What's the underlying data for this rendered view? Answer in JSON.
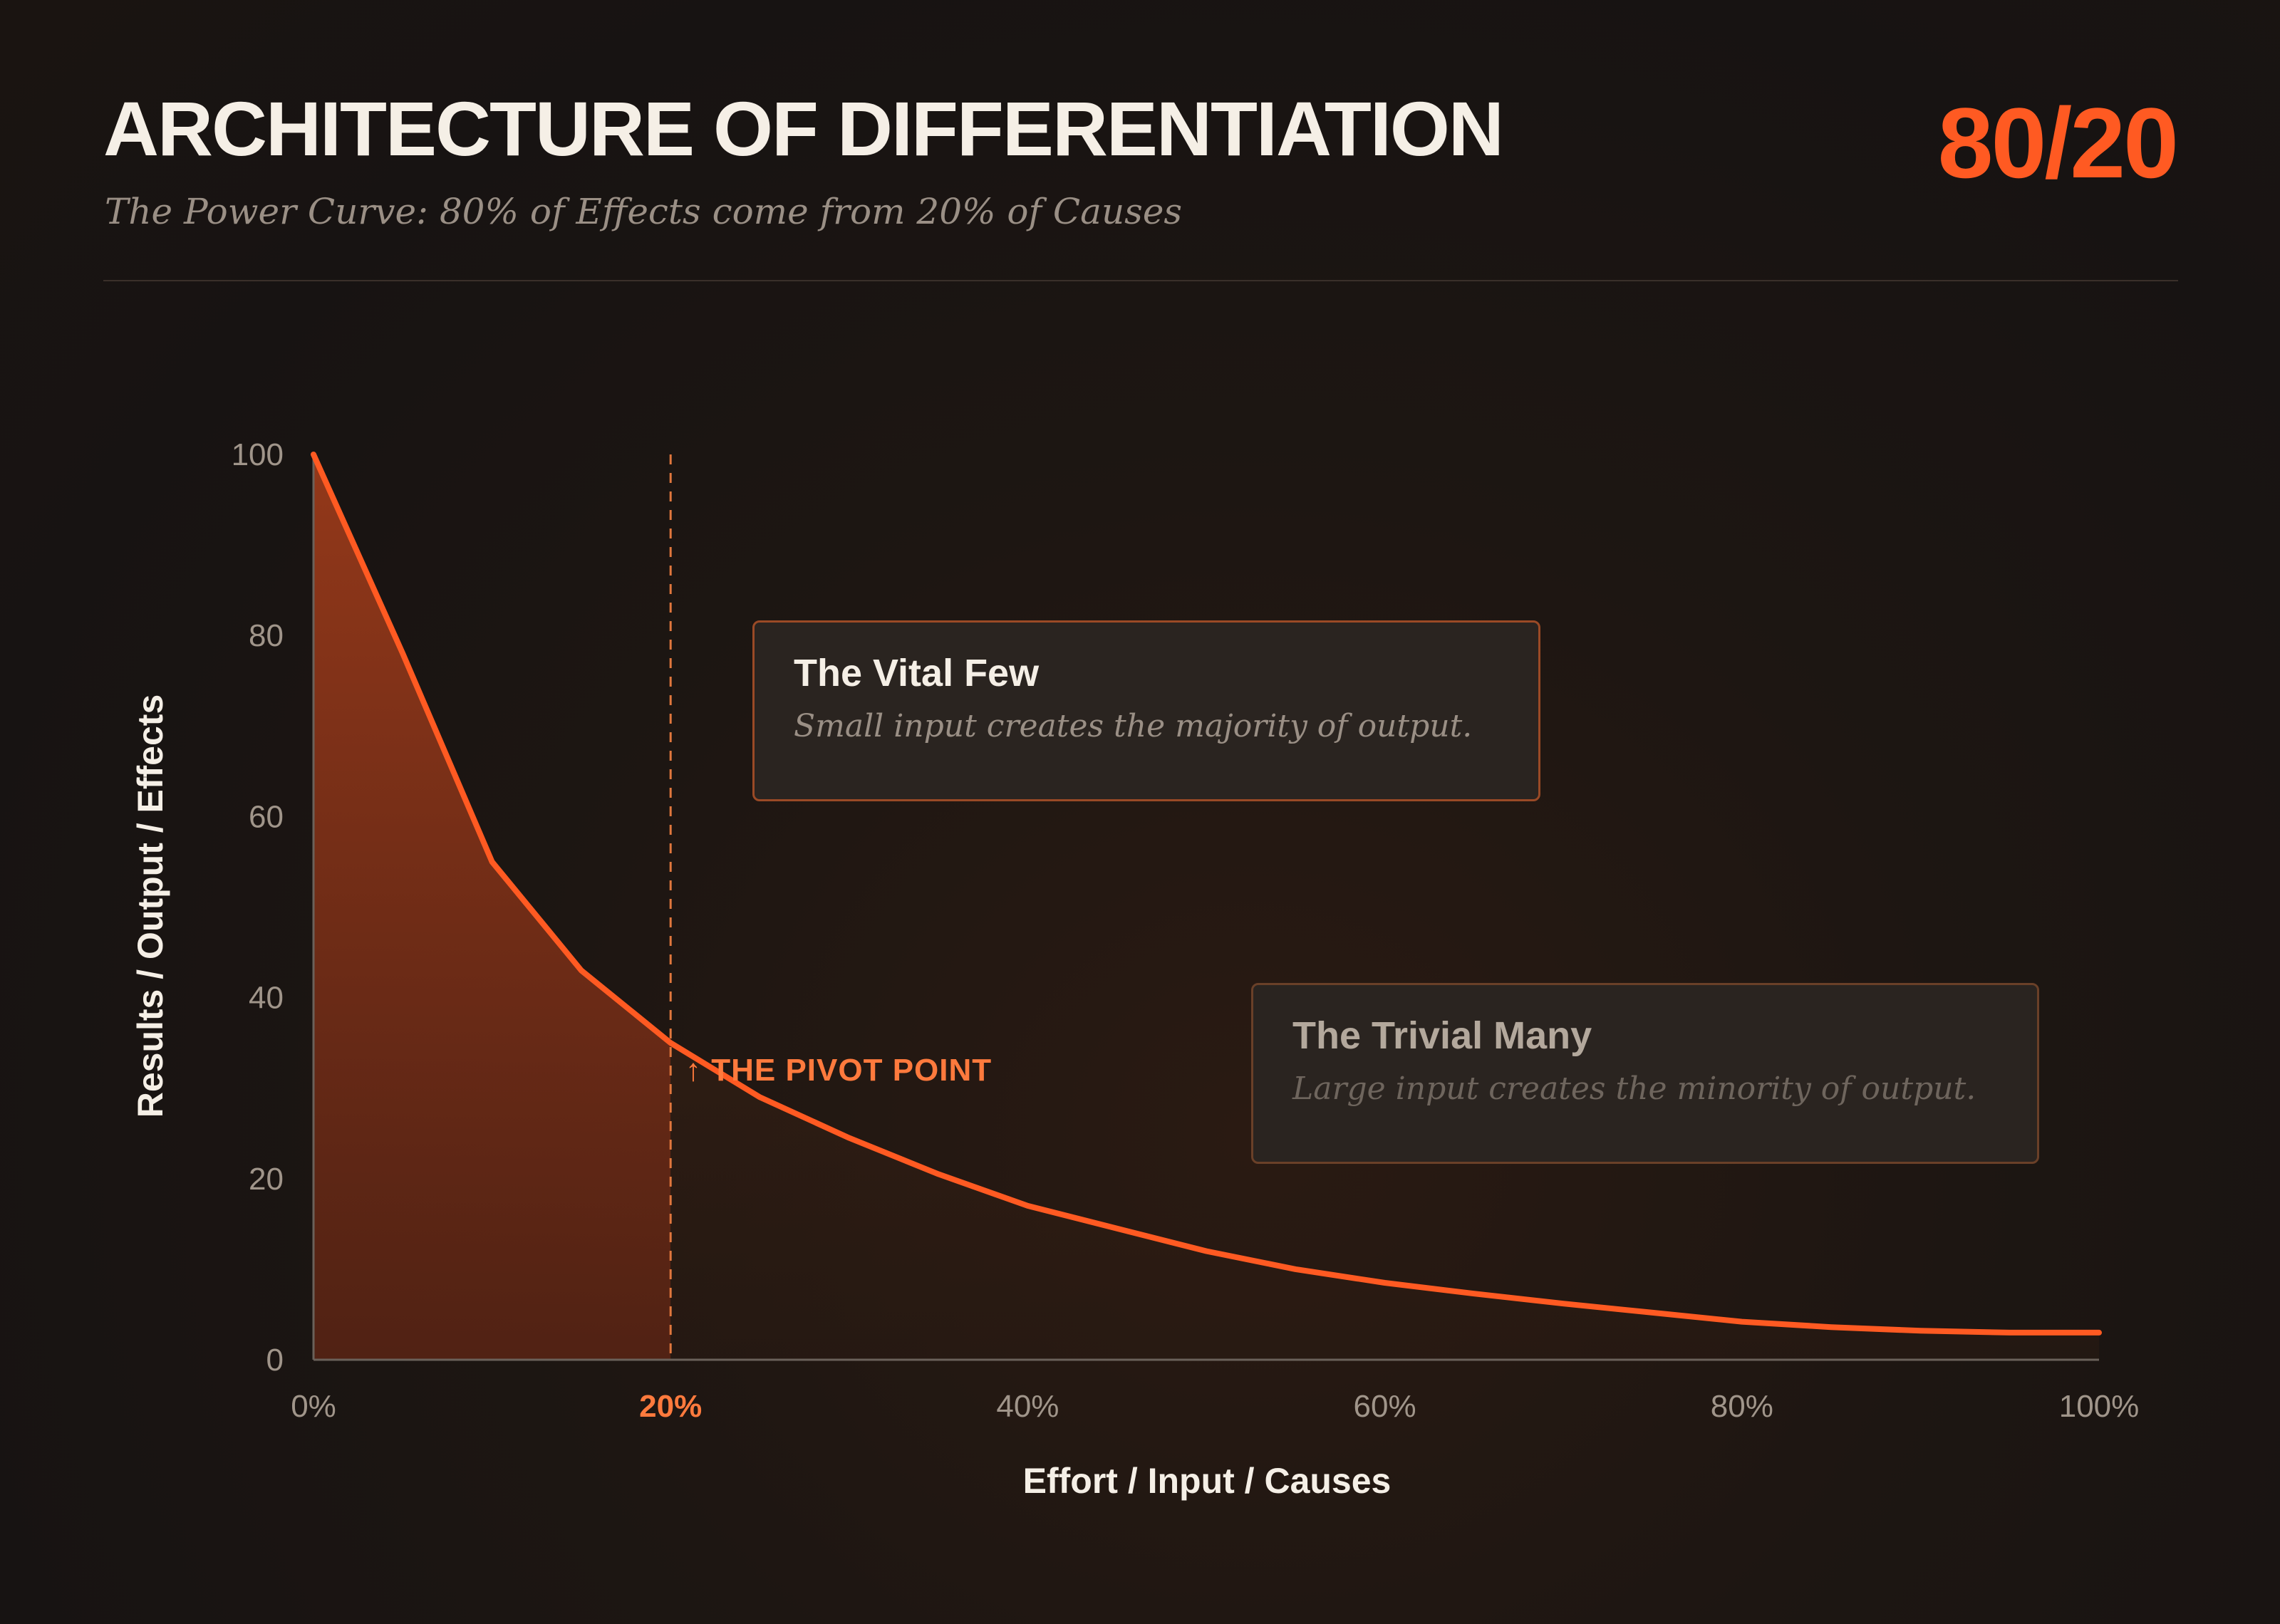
{
  "header": {
    "title": "ARCHITECTURE OF DIFFERENTIATION",
    "subtitle": "The Power Curve: 80% of Effects come from 20% of Causes",
    "ratio": "80/20"
  },
  "callouts": {
    "vital": {
      "title": "The Vital Few",
      "body": "Small input creates the majority of output."
    },
    "trivial": {
      "title": "The Trivial Many",
      "body": "Large input creates the minority of output."
    }
  },
  "pivot": {
    "label": "↑ THE PIVOT POINT",
    "x": 20
  },
  "chart_data": {
    "type": "area",
    "xlabel": "Effort / Input / Causes",
    "ylabel": "Results / Output / Effects",
    "xlim": [
      0,
      100
    ],
    "ylim": [
      0,
      100
    ],
    "x_ticks": [
      "0%",
      "20%",
      "40%",
      "60%",
      "80%",
      "100%"
    ],
    "y_ticks": [
      "0",
      "20",
      "40",
      "60",
      "80",
      "100"
    ],
    "highlight_tick": "20%",
    "series": [
      {
        "x": [
          0,
          5,
          10,
          15,
          20,
          25,
          30,
          35,
          40,
          45,
          50,
          55,
          60,
          65,
          70,
          75,
          80,
          85,
          90,
          95,
          100
        ],
        "y": [
          100,
          78,
          55,
          43,
          35,
          29,
          24.5,
          20.5,
          17,
          14.5,
          12,
          10,
          8.5,
          7.3,
          6.2,
          5.2,
          4.2,
          3.6,
          3.2,
          3,
          3
        ]
      }
    ],
    "colors": {
      "line": "#ff5a22",
      "fill_vital": "#9a3a1a",
      "fill_trivial": "#3a2216",
      "pivot": "#e0773d"
    }
  }
}
